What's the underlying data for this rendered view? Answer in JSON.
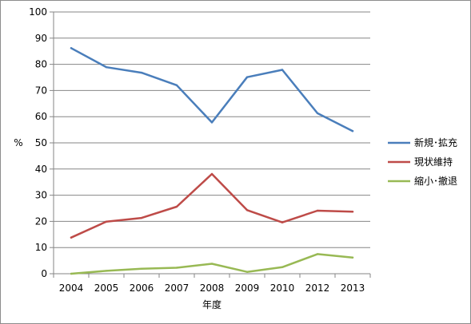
{
  "chart_data": {
    "type": "line",
    "categories": [
      "2004",
      "2005",
      "2006",
      "2007",
      "2008",
      "2009",
      "2010",
      "2012",
      "2013"
    ],
    "series": [
      {
        "name": "新規･拡充",
        "color": "#4a7ebb",
        "values": [
          86.2,
          78.9,
          76.8,
          72.0,
          57.8,
          75.1,
          77.9,
          61.3,
          54.5
        ]
      },
      {
        "name": "現状維持",
        "color": "#be4b48",
        "values": [
          13.8,
          19.9,
          21.3,
          25.6,
          38.1,
          24.3,
          19.6,
          24.1,
          23.7
        ]
      },
      {
        "name": "縮小･撤退",
        "color": "#98b954",
        "values": [
          0.0,
          1.1,
          1.9,
          2.3,
          3.8,
          0.7,
          2.5,
          7.5,
          6.2
        ]
      }
    ],
    "xlabel": "年度",
    "ylabel": "%",
    "ylim": [
      0,
      100
    ],
    "yticks": [
      0,
      10,
      20,
      30,
      40,
      50,
      60,
      70,
      80,
      90,
      100
    ],
    "grid": "horizontal",
    "legend": "right"
  }
}
